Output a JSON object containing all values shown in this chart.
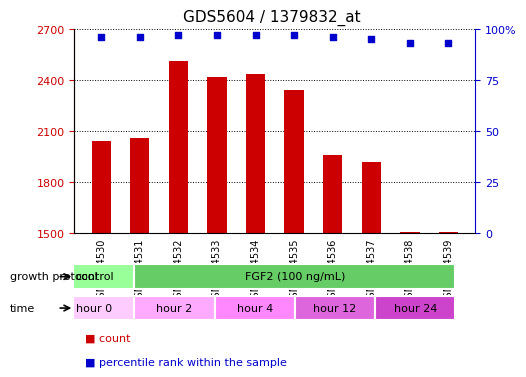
{
  "title": "GDS5604 / 1379832_at",
  "samples": [
    "GSM1224530",
    "GSM1224531",
    "GSM1224532",
    "GSM1224533",
    "GSM1224534",
    "GSM1224535",
    "GSM1224536",
    "GSM1224537",
    "GSM1224538",
    "GSM1224539"
  ],
  "counts": [
    2040,
    2060,
    2510,
    2420,
    2435,
    2340,
    1960,
    1920,
    1510,
    1510
  ],
  "percentile_ranks": [
    96,
    96,
    97,
    97,
    97,
    97,
    96,
    95,
    93,
    93
  ],
  "bar_color": "#cc0000",
  "dot_color": "#0000cc",
  "ylim_left": [
    1500,
    2700
  ],
  "yticks_left": [
    1500,
    1800,
    2100,
    2400,
    2700
  ],
  "ylim_right": [
    0,
    100
  ],
  "yticks_right": [
    0,
    25,
    50,
    75,
    100
  ],
  "ylabel_left_color": "#cc0000",
  "ylabel_right_color": "#0000cc",
  "grid_color": "#000000",
  "bg_color": "#ffffff",
  "plot_bg_color": "#ffffff",
  "growth_protocol_label": "growth protocol",
  "time_label": "time",
  "groups": [
    {
      "label": "control",
      "samples": [
        "GSM1224530",
        "GSM1224531"
      ],
      "color": "#99ff99"
    },
    {
      "label": "FGF2 (100 ng/mL)",
      "samples": [
        "GSM1224532",
        "GSM1224533",
        "GSM1224534",
        "GSM1224535",
        "GSM1224536",
        "GSM1224537",
        "GSM1224538",
        "GSM1224539"
      ],
      "color": "#66cc66"
    }
  ],
  "time_groups": [
    {
      "label": "hour 0",
      "samples": [
        "GSM1224530",
        "GSM1224531"
      ],
      "color": "#ffccff"
    },
    {
      "label": "hour 2",
      "samples": [
        "GSM1224532",
        "GSM1224533"
      ],
      "color": "#ffaaff"
    },
    {
      "label": "hour 4",
      "samples": [
        "GSM1224534",
        "GSM1224535"
      ],
      "color": "#ff88ff"
    },
    {
      "label": "hour 12",
      "samples": [
        "GSM1224536",
        "GSM1224537"
      ],
      "color": "#dd66dd"
    },
    {
      "label": "hour 24",
      "samples": [
        "GSM1224538",
        "GSM1224539"
      ],
      "color": "#cc44cc"
    }
  ],
  "legend_count_color": "#cc0000",
  "legend_percentile_color": "#0000cc",
  "count_label": "count",
  "percentile_label": "percentile rank within the sample"
}
